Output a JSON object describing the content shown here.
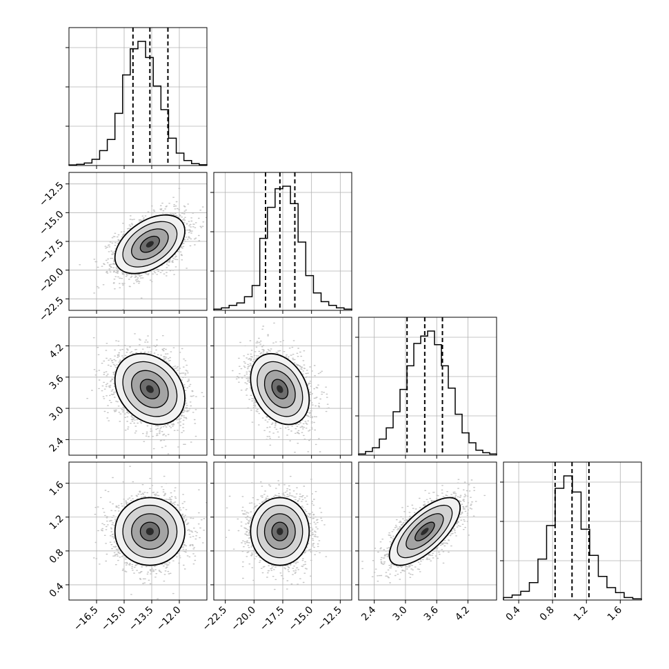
{
  "chart_data": {
    "type": "corner",
    "title": "",
    "grid": true,
    "parameters": [
      {
        "name": "",
        "range": [
          -18.0,
          -10.5
        ],
        "quantiles": [
          -14.52,
          -13.6,
          -12.62
        ],
        "ticks": [
          -16.5,
          -15.0,
          -13.5,
          -12.0
        ],
        "tick_labels": [
          "−16.5",
          "−15.0",
          "−13.5",
          "−12.0"
        ],
        "histogram": [
          0.005,
          0.01,
          0.02,
          0.05,
          0.12,
          0.21,
          0.42,
          0.73,
          0.94,
          1.0,
          0.87,
          0.64,
          0.45,
          0.22,
          0.1,
          0.04,
          0.015,
          0.006
        ]
      },
      {
        "name": "",
        "range": [
          -23.5,
          -11.5
        ],
        "quantiles": [
          -19.0,
          -17.75,
          -16.45
        ],
        "ticks": [
          -22.5,
          -20.0,
          -17.5,
          -15.0,
          -12.5
        ],
        "tick_labels": [
          "−22.5",
          "−20.0",
          "−17.5",
          "−15.0",
          "−12.5"
        ],
        "histogram": [
          0.01,
          0.02,
          0.04,
          0.06,
          0.11,
          0.2,
          0.58,
          0.83,
          0.98,
          1.0,
          0.86,
          0.55,
          0.28,
          0.14,
          0.07,
          0.04,
          0.02,
          0.01
        ]
      },
      {
        "name": "",
        "range": [
          2.1,
          4.75
        ],
        "quantiles": [
          3.03,
          3.37,
          3.71
        ],
        "ticks": [
          2.4,
          3.0,
          3.6,
          4.2
        ],
        "tick_labels": [
          "2.4",
          "3.0",
          "3.6",
          "4.2"
        ],
        "histogram": [
          0.01,
          0.03,
          0.06,
          0.13,
          0.22,
          0.35,
          0.53,
          0.72,
          0.9,
          0.96,
          1.0,
          0.89,
          0.72,
          0.54,
          0.33,
          0.18,
          0.1,
          0.04,
          0.02,
          0.01
        ]
      },
      {
        "name": "",
        "range": [
          0.22,
          1.85
        ],
        "quantiles": [
          0.83,
          1.03,
          1.23
        ],
        "ticks": [
          0.4,
          0.8,
          1.2,
          1.6
        ],
        "tick_labels": [
          "0.4",
          "0.8",
          "1.2",
          "1.6"
        ],
        "histogram": [
          0.02,
          0.04,
          0.07,
          0.14,
          0.33,
          0.6,
          0.9,
          1.0,
          0.87,
          0.57,
          0.36,
          0.19,
          0.1,
          0.06,
          0.02,
          0.01
        ]
      }
    ],
    "correlations": {
      "1-0": 0.45,
      "2-0": -0.25,
      "2-1": -0.3,
      "3-0": 0.0,
      "3-1": 0.0,
      "3-2": 0.7
    }
  }
}
